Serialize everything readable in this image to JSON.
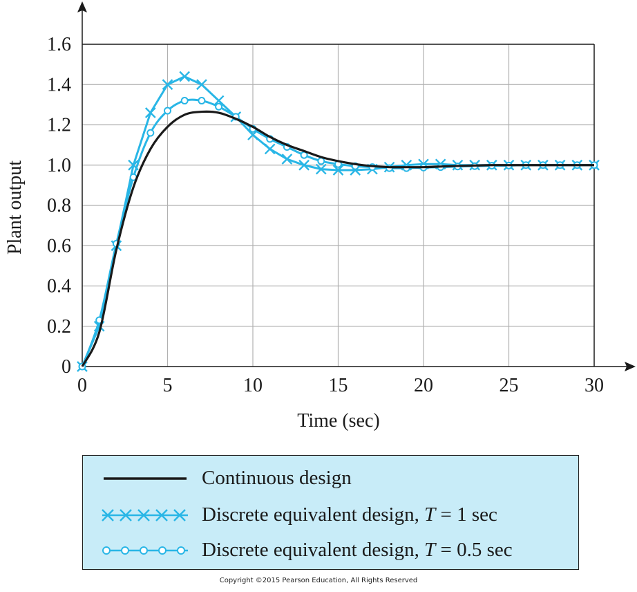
{
  "chart_data": {
    "type": "line",
    "xlabel": "Time (sec)",
    "ylabel": "Plant output",
    "xlim": [
      0,
      30
    ],
    "ylim": [
      0,
      1.6
    ],
    "xticks": [
      0,
      5,
      10,
      15,
      20,
      25,
      30
    ],
    "yticks": [
      0,
      0.2,
      0.4,
      0.6,
      0.8,
      1.0,
      1.2,
      1.4,
      1.6
    ],
    "xtick_labels": [
      "0",
      "5",
      "10",
      "15",
      "20",
      "25",
      "30"
    ],
    "ytick_labels": [
      "0",
      "0.2",
      "0.4",
      "0.6",
      "0.8",
      "1.0",
      "1.2",
      "1.4",
      "1.6"
    ],
    "grid": true,
    "legend_position": "below",
    "series": [
      {
        "name": "Continuous design",
        "color": "#1a1a1a",
        "marker": "none",
        "x": [
          0,
          1,
          2,
          3,
          4,
          5,
          6,
          7,
          8,
          9,
          10,
          11,
          12,
          13,
          14,
          15,
          16,
          17,
          18,
          19,
          20,
          21,
          22,
          23,
          24,
          25,
          26,
          27,
          28,
          29,
          30
        ],
        "y": [
          0,
          0.17,
          0.58,
          0.89,
          1.08,
          1.19,
          1.25,
          1.265,
          1.26,
          1.23,
          1.19,
          1.14,
          1.1,
          1.07,
          1.04,
          1.02,
          1.005,
          0.995,
          0.99,
          0.99,
          0.99,
          0.993,
          0.996,
          0.998,
          1.0,
          1.0,
          1.0,
          1.0,
          1.0,
          1.0,
          1.0
        ]
      },
      {
        "name": "Discrete equivalent design, T = 1 sec",
        "color": "#29b6e6",
        "marker": "x",
        "x": [
          0,
          1,
          2,
          3,
          4,
          5,
          6,
          7,
          8,
          9,
          10,
          11,
          12,
          13,
          14,
          15,
          16,
          17,
          18,
          19,
          20,
          21,
          22,
          23,
          24,
          25,
          26,
          27,
          28,
          29,
          30
        ],
        "y": [
          0,
          0.2,
          0.6,
          1.0,
          1.26,
          1.4,
          1.44,
          1.4,
          1.32,
          1.24,
          1.15,
          1.08,
          1.03,
          1.0,
          0.98,
          0.975,
          0.975,
          0.98,
          0.99,
          1.0,
          1.005,
          1.005,
          1.0,
          1.0,
          1.0,
          1.0,
          1.0,
          1.0,
          1.0,
          1.0,
          1.0
        ]
      },
      {
        "name": "Discrete equivalent design, T = 0.5 sec",
        "color": "#29b6e6",
        "marker": "o",
        "x": [
          0,
          1,
          2,
          3,
          4,
          5,
          6,
          7,
          8,
          9,
          10,
          11,
          12,
          13,
          14,
          15,
          16,
          17,
          18,
          19,
          20,
          21,
          22,
          23,
          24,
          25,
          26,
          27,
          28,
          29,
          30
        ],
        "y": [
          0,
          0.23,
          0.61,
          0.94,
          1.16,
          1.27,
          1.32,
          1.32,
          1.29,
          1.24,
          1.18,
          1.13,
          1.09,
          1.05,
          1.02,
          1.005,
          0.995,
          0.99,
          0.985,
          0.985,
          0.988,
          0.99,
          0.993,
          0.995,
          0.997,
          0.998,
          1.0,
          1.0,
          1.0,
          1.0,
          1.0
        ]
      }
    ]
  },
  "legend": {
    "items": [
      {
        "text": "Continuous design",
        "italic_var": "",
        "suffix": ""
      },
      {
        "text": "Discrete equivalent design, ",
        "italic_var": "T",
        "suffix": " = 1 sec"
      },
      {
        "text": "Discrete equivalent design, ",
        "italic_var": "T",
        "suffix": " = 0.5 sec"
      }
    ]
  },
  "colors": {
    "background": "#ffffff",
    "legend_bg": "#c8ecf8",
    "grid": "#b0b0b0",
    "axis": "#1a1a1a",
    "accent": "#29b6e6"
  },
  "copyright": "Copyright ©2015 Pearson Education, All Rights Reserved"
}
